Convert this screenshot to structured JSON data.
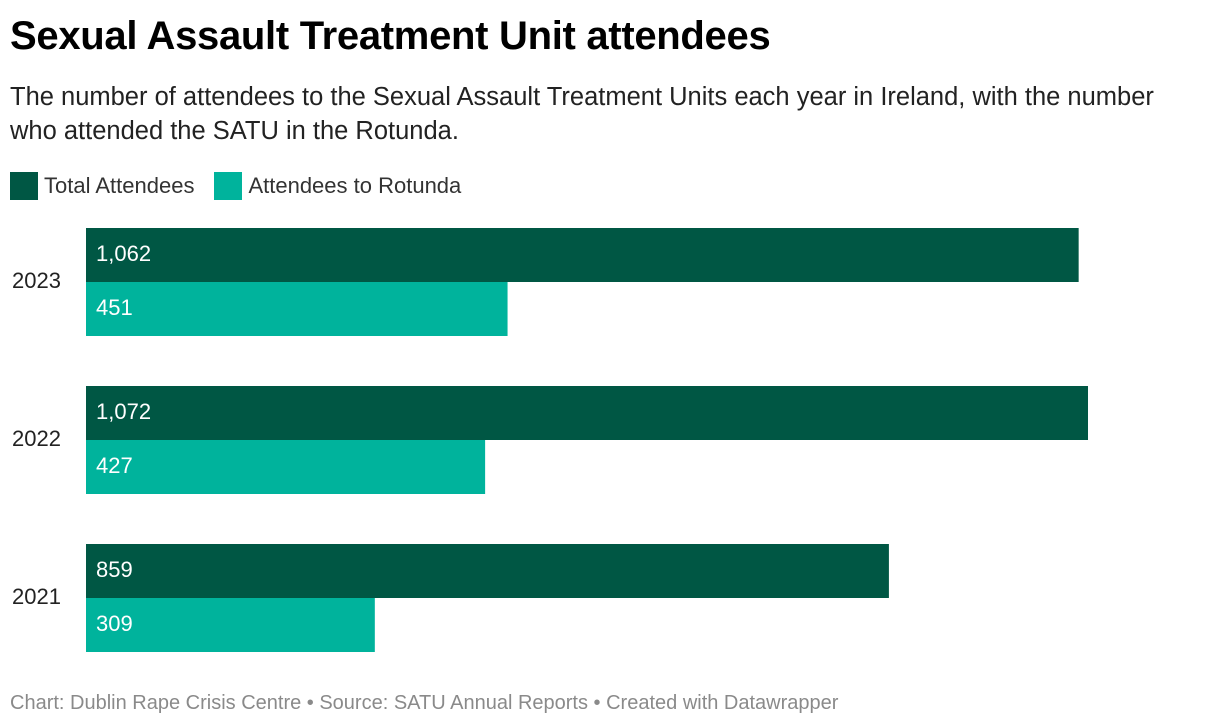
{
  "chart_data": {
    "type": "bar",
    "orientation": "horizontal",
    "title": "Sexual Assault Treatment Unit attendees",
    "subtitle": "The number of attendees to the Sexual Assault Treatment Units each year in Ireland, with the number who attended the SATU in the Rotunda.",
    "categories": [
      "2023",
      "2022",
      "2021"
    ],
    "series": [
      {
        "name": "Total Attendees",
        "color": "#005744",
        "values": [
          1062,
          1072,
          859
        ],
        "labels": [
          "1,062",
          "1,072",
          "859"
        ]
      },
      {
        "name": "Attendees to Rotunda",
        "color": "#00b39c",
        "values": [
          451,
          427,
          309
        ],
        "labels": [
          "451",
          "427",
          "309"
        ]
      }
    ],
    "xlim": [
      0,
      1072
    ],
    "grid": false,
    "legend_position": "top-left",
    "xlabel": "",
    "ylabel": ""
  },
  "footer": {
    "text": "Chart: Dublin Rape Crisis Centre • Source: SATU Annual Reports • Created with Datawrapper"
  }
}
